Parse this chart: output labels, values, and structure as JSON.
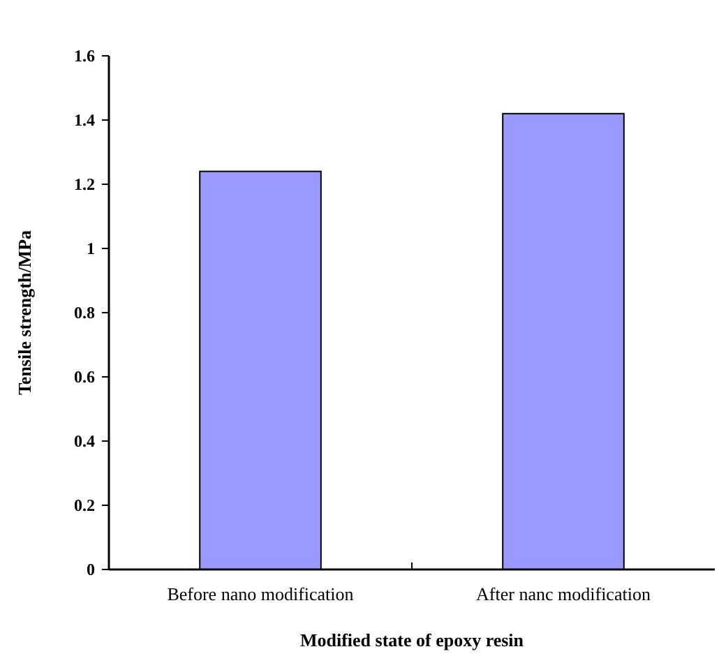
{
  "chart_data": {
    "type": "bar",
    "xlabel": "Modified state of epoxy resin",
    "ylabel": "Tensile strength/MPa",
    "categories": [
      "Before nano modification",
      "After nanc modification"
    ],
    "values": [
      1.24,
      1.42
    ],
    "color": "#9999ff",
    "ylim": [
      0,
      1.6
    ],
    "yticks": [
      0,
      0.2,
      0.4,
      0.6,
      0.8,
      1,
      1.2,
      1.4,
      1.6
    ],
    "grid": false
  }
}
